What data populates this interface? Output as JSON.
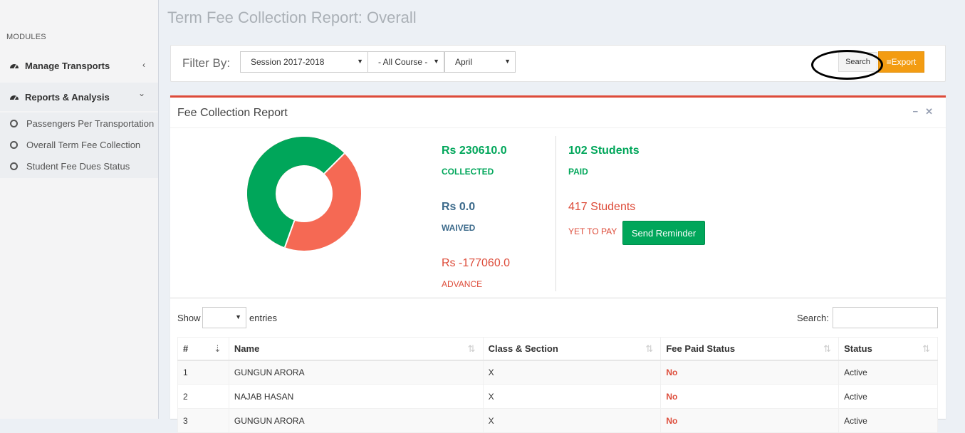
{
  "sidebar": {
    "header": "MODULES",
    "items": [
      {
        "label": "Manage Transports",
        "chevron": "‹"
      },
      {
        "label": "Reports & Analysis",
        "chevron": "⌄"
      }
    ],
    "subitems": [
      {
        "label": "Passengers Per Transportation"
      },
      {
        "label": "Overall Term Fee Collection"
      },
      {
        "label": "Student Fee Dues Status"
      }
    ]
  },
  "page": {
    "title": "Term Fee Collection Report: Overall"
  },
  "filter": {
    "label": "Filter By:",
    "session": "Session 2017-2018",
    "course": "- All Course -",
    "month": "April",
    "search_button": "Search",
    "export_button": "Export"
  },
  "report": {
    "title": "Fee Collection Report",
    "collected_value": "Rs 230610.0",
    "collected_label": "COLLECTED",
    "waived_value": "Rs 0.0",
    "waived_label": "WAIVED",
    "advance_value": "Rs -177060.0",
    "advance_label": "ADVANCE",
    "paid_value": "102 Students",
    "paid_label": "PAID",
    "unpaid_value": "417 Students",
    "unpaid_label": "YET TO PAY",
    "reminder_button": "Send Reminder",
    "donut": {
      "collected_color": "#00a65a",
      "remaining_color": "#f56954",
      "collected_fraction": 0.57
    }
  },
  "table": {
    "show_label": "Show",
    "entries_label": "entries",
    "search_label": "Search:",
    "headers": [
      "#",
      "Name",
      "Class & Section",
      "Fee Paid Status",
      "Status"
    ],
    "rows": [
      {
        "num": "1",
        "name": "GUNGUN ARORA",
        "class": "X",
        "paid": "No",
        "status": "Active"
      },
      {
        "num": "2",
        "name": "NAJAB HASAN",
        "class": "X",
        "paid": "No",
        "status": "Active"
      },
      {
        "num": "3",
        "name": "GUNGUN ARORA",
        "class": "X",
        "paid": "No",
        "status": "Active"
      }
    ]
  }
}
